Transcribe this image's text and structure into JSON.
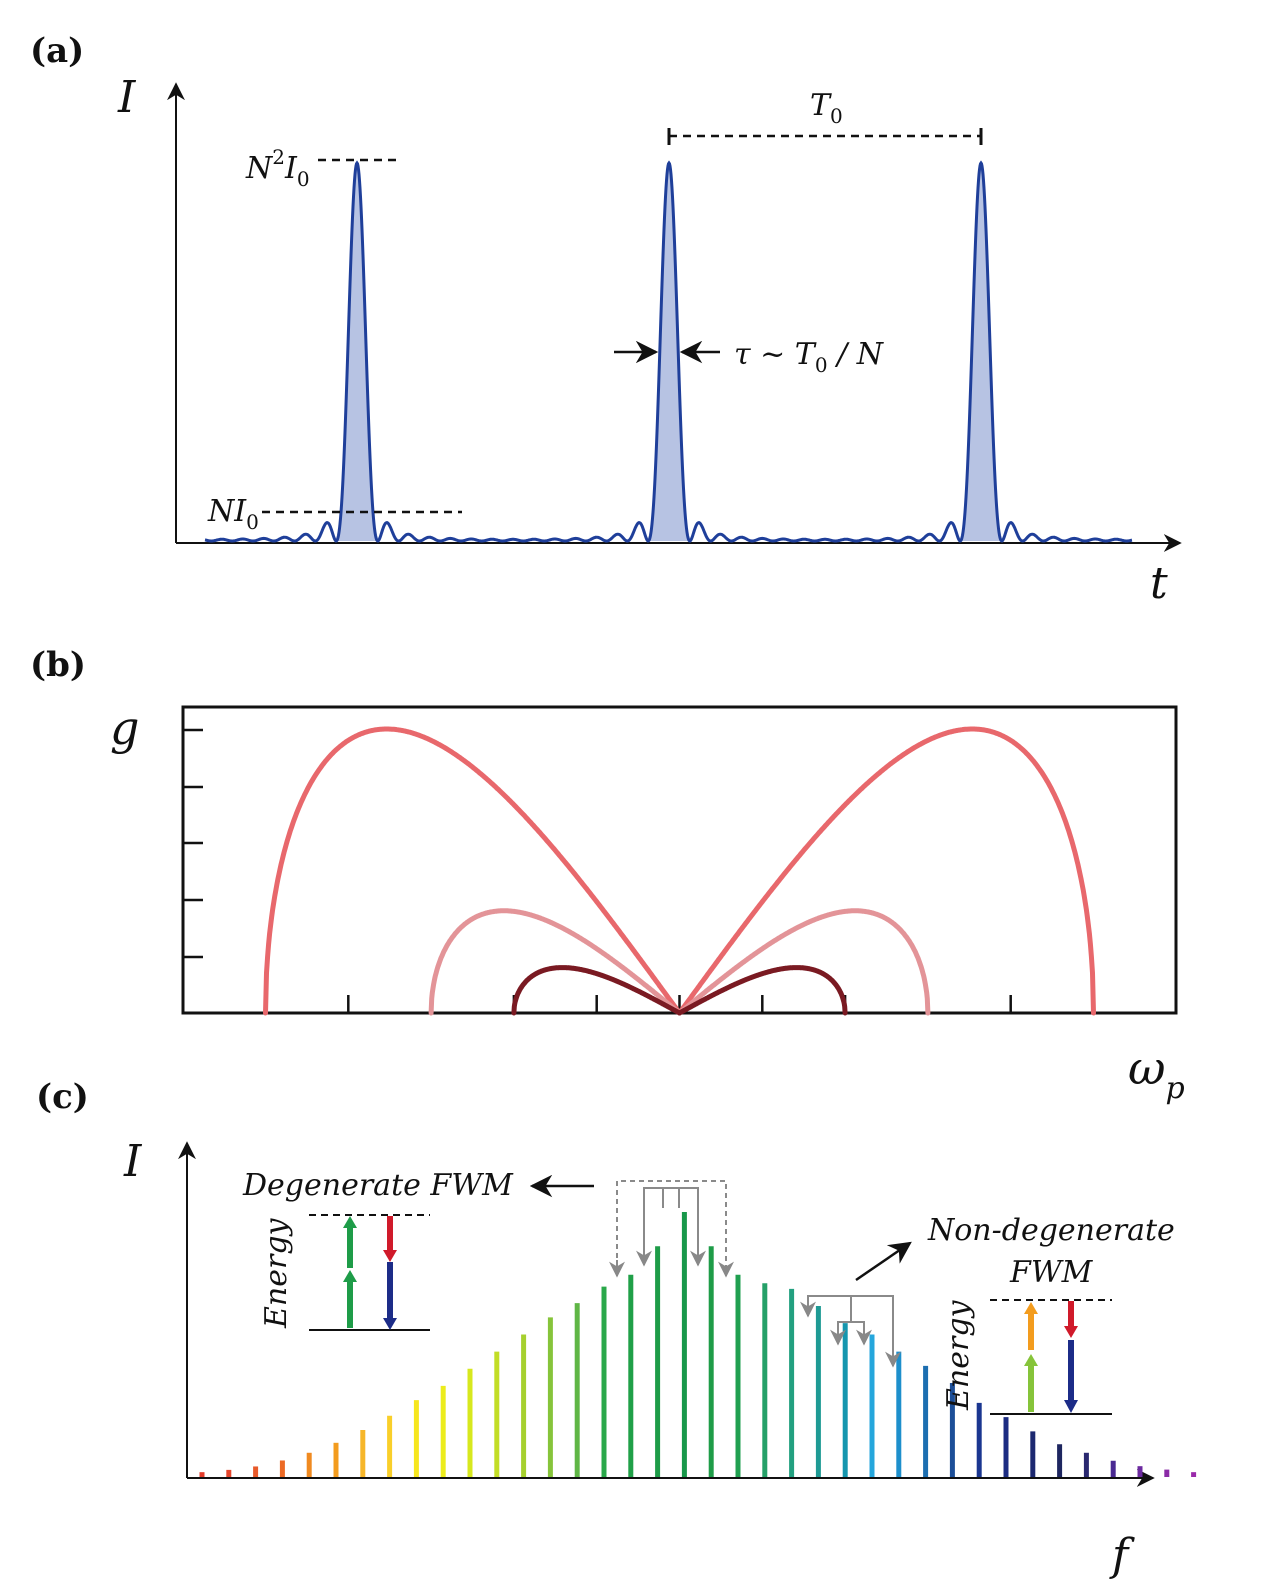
{
  "panels": [
    {
      "label": "(a)",
      "y_label": "I",
      "x_label": "t",
      "peak_label_base": "N",
      "peak_label_sup": "2",
      "peak_label_var": "I",
      "peak_label_sub": "0",
      "base_label_var": "NI",
      "base_label_sub": "0",
      "period_label_var": "T",
      "period_label_sub": "0",
      "width_label_tau": "τ ~ T",
      "width_label_sub": "0",
      "width_label_rest": " / N",
      "pulse_color": "#1f3f9a",
      "pulse_fill": "#b7c3e3"
    },
    {
      "label": "(b)",
      "y_label": "g",
      "x_label_main": "ω",
      "x_label_sub": "p",
      "curve_colors": [
        "#e8686c",
        "#e39498",
        "#7a1a22"
      ]
    },
    {
      "label": "(c)",
      "y_label": "I",
      "x_label": "f",
      "degenerate_label": "Degenerate FWM",
      "nondegenerate_label_1": "Non-degenerate",
      "nondegenerate_label_2": "FWM",
      "energy_label": "Energy",
      "energy_label_2": "Energy"
    }
  ],
  "chart_data": [
    {
      "type": "line",
      "title": "",
      "xlabel": "t",
      "ylabel": "I",
      "series": [
        {
          "peaks_at_periods": [
            1,
            2,
            3
          ],
          "peak_value": "N²I₀",
          "baseline_marker": "NI₀",
          "pulse_width": "τ ~ T₀ / N",
          "period": "T₀"
        }
      ]
    },
    {
      "type": "line",
      "title": "",
      "xlabel": "ωp",
      "ylabel": "g",
      "grid": false,
      "series": [
        {
          "color": "#e8686c",
          "half_width_ticks": 5,
          "relative_peak": 1.0
        },
        {
          "color": "#e39498",
          "half_width_ticks": 3,
          "relative_peak": 0.36
        },
        {
          "color": "#7a1a22",
          "half_width_ticks": 2,
          "relative_peak": 0.16
        }
      ]
    },
    {
      "type": "bar",
      "title": "",
      "xlabel": "f",
      "ylabel": "I",
      "values": [
        0.017,
        0.025,
        0.037,
        0.058,
        0.085,
        0.12,
        0.165,
        0.215,
        0.27,
        0.32,
        0.38,
        0.44,
        0.5,
        0.56,
        0.61,
        0.668,
        0.71,
        0.81,
        0.93,
        0.81,
        0.71,
        0.68,
        0.66,
        0.6,
        0.54,
        0.5,
        0.44,
        0.39,
        0.33,
        0.26,
        0.21,
        0.16,
        0.115,
        0.085,
        0.057,
        0.038,
        0.026,
        0.017
      ],
      "colors": [
        "#e23b2a",
        "#e5452b",
        "#e85a2a",
        "#ec6a25",
        "#f08a20",
        "#f39c1e",
        "#f6b62a",
        "#f9cf2a",
        "#f6e61e",
        "#ecec1c",
        "#d7e81e",
        "#c2dd26",
        "#a6d02e",
        "#86c43a",
        "#5fb646",
        "#2aa84a",
        "#20a048",
        "#1e9c48",
        "#18984a",
        "#1e9c48",
        "#20a050",
        "#25a068",
        "#22a080",
        "#1e9a94",
        "#1596ae",
        "#25a6dc",
        "#1d8fcc",
        "#1c6eb0",
        "#1c4e98",
        "#1a3690",
        "#1c2c82",
        "#1c2870",
        "#1e2660",
        "#2a2870",
        "#4a2a92",
        "#6c2aa0",
        "#8a2aa6",
        "#9a2aaa"
      ]
    }
  ]
}
